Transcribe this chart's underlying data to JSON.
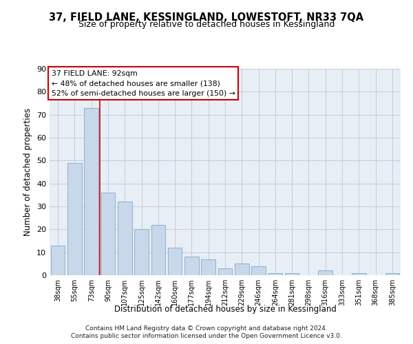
{
  "title1": "37, FIELD LANE, KESSINGLAND, LOWESTOFT, NR33 7QA",
  "title2": "Size of property relative to detached houses in Kessingland",
  "xlabel": "Distribution of detached houses by size in Kessingland",
  "ylabel": "Number of detached properties",
  "categories": [
    "38sqm",
    "55sqm",
    "73sqm",
    "90sqm",
    "107sqm",
    "125sqm",
    "142sqm",
    "160sqm",
    "177sqm",
    "194sqm",
    "212sqm",
    "229sqm",
    "246sqm",
    "264sqm",
    "281sqm",
    "298sqm",
    "316sqm",
    "333sqm",
    "351sqm",
    "368sqm",
    "385sqm"
  ],
  "values": [
    13,
    49,
    73,
    36,
    32,
    20,
    22,
    12,
    8,
    7,
    3,
    5,
    4,
    1,
    1,
    0,
    2,
    0,
    1,
    0,
    1
  ],
  "bar_color": "#c8d8ea",
  "bar_edge_color": "#8ab0cc",
  "vline_x": 2.5,
  "vline_color": "#cc0000",
  "annotation_text": "37 FIELD LANE: 92sqm\n← 48% of detached houses are smaller (138)\n52% of semi-detached houses are larger (150) →",
  "annotation_box_edge_color": "#cc0000",
  "ylim": [
    0,
    90
  ],
  "yticks": [
    0,
    10,
    20,
    30,
    40,
    50,
    60,
    70,
    80,
    90
  ],
  "grid_color": "#c0ccd8",
  "bg_color": "#e8eef5",
  "footer_line1": "Contains HM Land Registry data © Crown copyright and database right 2024.",
  "footer_line2": "Contains public sector information licensed under the Open Government Licence v3.0."
}
